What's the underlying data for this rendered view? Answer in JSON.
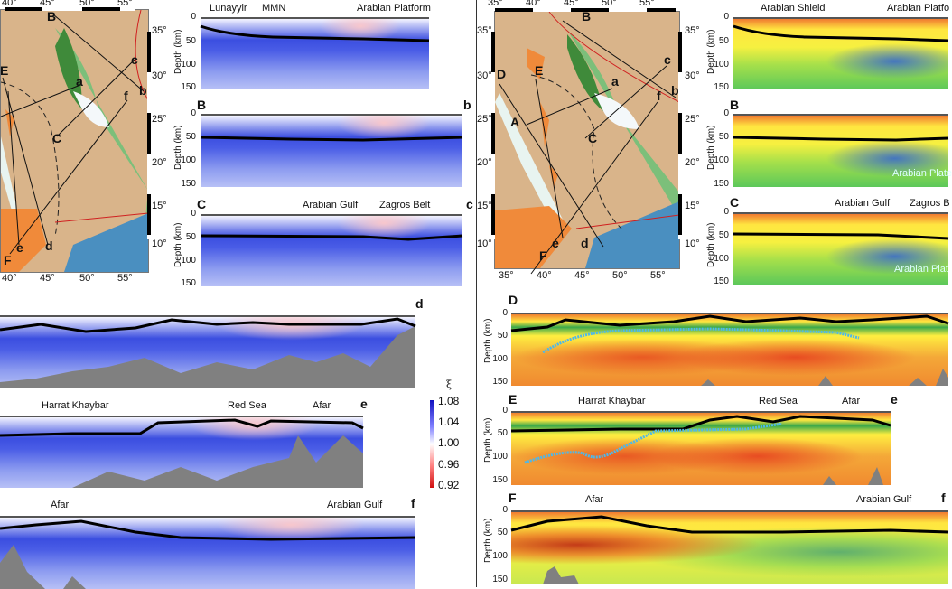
{
  "left": {
    "map": {
      "lon_labels_top": [
        "40°",
        "45°",
        "50°",
        "55°"
      ],
      "lon_labels_bottom": [
        "40°",
        "45°",
        "50°",
        "55°"
      ],
      "lat_labels": [
        "35°",
        "30°",
        "25°",
        "20°",
        "15°",
        "10°"
      ],
      "profile_labels": [
        "B",
        "c",
        "E",
        "a",
        "b",
        "f",
        "C",
        "d",
        "e",
        "F"
      ]
    },
    "A": {
      "stations": [
        "Lunayyir",
        "MMN"
      ],
      "region": "Arabian Platform",
      "depth_label": "Depth (km)",
      "ticks": [
        "0",
        "50",
        "100",
        "150"
      ]
    },
    "B": {
      "start": "B",
      "end": "b",
      "depth_label": "Depth (km)",
      "ticks": [
        "0",
        "50",
        "100",
        "150"
      ]
    },
    "C": {
      "start": "C",
      "end": "c",
      "labels": [
        "Arabian Gulf",
        "Zagros Belt"
      ],
      "depth_label": "Depth (km)",
      "ticks": [
        "0",
        "50",
        "100",
        "150"
      ]
    },
    "d": {
      "end": "d"
    },
    "e": {
      "end": "e",
      "labels": [
        "Harrat Khaybar",
        "Red Sea",
        "Afar"
      ]
    },
    "f": {
      "end": "f",
      "labels": [
        "Afar",
        "Arabian Gulf"
      ]
    },
    "colorbar": {
      "symbol": "ξ",
      "ticks": [
        "1.08",
        "1.04",
        "1.00",
        "0.96",
        "0.92"
      ],
      "max": 1.08,
      "min": 0.92
    }
  },
  "right": {
    "map": {
      "lon_labels_top": [
        "35°",
        "40°",
        "45°",
        "50°",
        "55°"
      ],
      "lon_labels_bottom": [
        "35°",
        "40°",
        "45°",
        "50°",
        "55°"
      ],
      "lat_labels": [
        "35°",
        "30°",
        "25°",
        "20°",
        "15°",
        "10°"
      ],
      "profile_labels": [
        "B",
        "c",
        "D",
        "E",
        "a",
        "b",
        "f",
        "A",
        "C",
        "d",
        "e",
        "F"
      ]
    },
    "A": {
      "region1": "Arabian Shield",
      "region2": "Arabian Platfo",
      "depth_label": "Depth (km)",
      "ticks": [
        "0",
        "50",
        "100",
        "150"
      ]
    },
    "B": {
      "start": "B",
      "plate": "Arabian Plate",
      "depth_label": "Depth (km)",
      "ticks": [
        "0",
        "50",
        "100",
        "150"
      ]
    },
    "C": {
      "start": "C",
      "labels": [
        "Arabian Gulf",
        "Zagros B"
      ],
      "plate": "Arabian Plat",
      "depth_label": "Depth (km)",
      "ticks": [
        "0",
        "50",
        "100",
        "150"
      ]
    },
    "D": {
      "start": "D",
      "depth_label": "Depth (km)",
      "ticks": [
        "0",
        "50",
        "100",
        "150"
      ]
    },
    "E": {
      "start": "E",
      "end": "e",
      "labels": [
        "Harrat Khaybar",
        "Red Sea",
        "Afar"
      ],
      "depth_label": "Depth (km)",
      "ticks": [
        "0",
        "50",
        "100",
        "150"
      ]
    },
    "F": {
      "start": "F",
      "end": "f",
      "labels": [
        "Afar",
        "Arabian Gulf"
      ],
      "depth_label": "Depth (km)",
      "ticks": [
        "0",
        "50",
        "100",
        "150"
      ]
    }
  }
}
